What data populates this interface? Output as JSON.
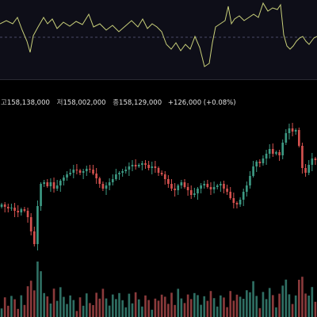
{
  "legend": {
    "items": [
      {
        "label": "고",
        "value": "158,138,000"
      },
      {
        "label": "저",
        "value": "158,002,000"
      },
      {
        "label": "종",
        "value": "158,129,000"
      }
    ],
    "change": "+126,000 (+0.08%)"
  },
  "colors": {
    "background": "#000000",
    "oscillator_background": "#0e0e18",
    "oscillator_line": "#c9d07a",
    "reference_line": "#4a4a66",
    "up": "#3d9a84",
    "down": "#d6524f",
    "volume_up": "#2f6f63",
    "volume_down": "#8a3a3b"
  }
}
